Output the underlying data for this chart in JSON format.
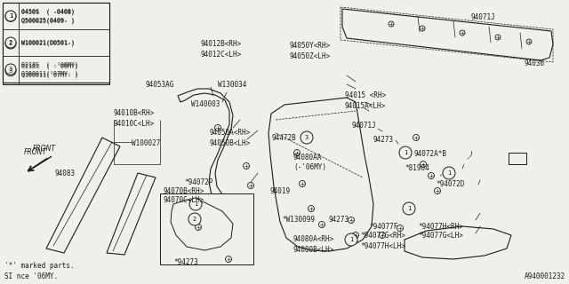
{
  "bg_color": "#f0f0ea",
  "line_color": "#1a1a1a",
  "diagram_id": "A940001232",
  "legend_items": [
    {
      "num": "1",
      "lines": [
        "0450S  ( -0408)",
        "Q500025(0409- )"
      ]
    },
    {
      "num": "2",
      "lines": [
        "W100021(D0501-)"
      ]
    },
    {
      "num": "3",
      "lines": [
        "0218S  ( -'06MY)",
        "Q360011('07MY- )"
      ]
    }
  ],
  "footer_notes": [
    "'*' marked parts.",
    "SI nce '06MY."
  ]
}
